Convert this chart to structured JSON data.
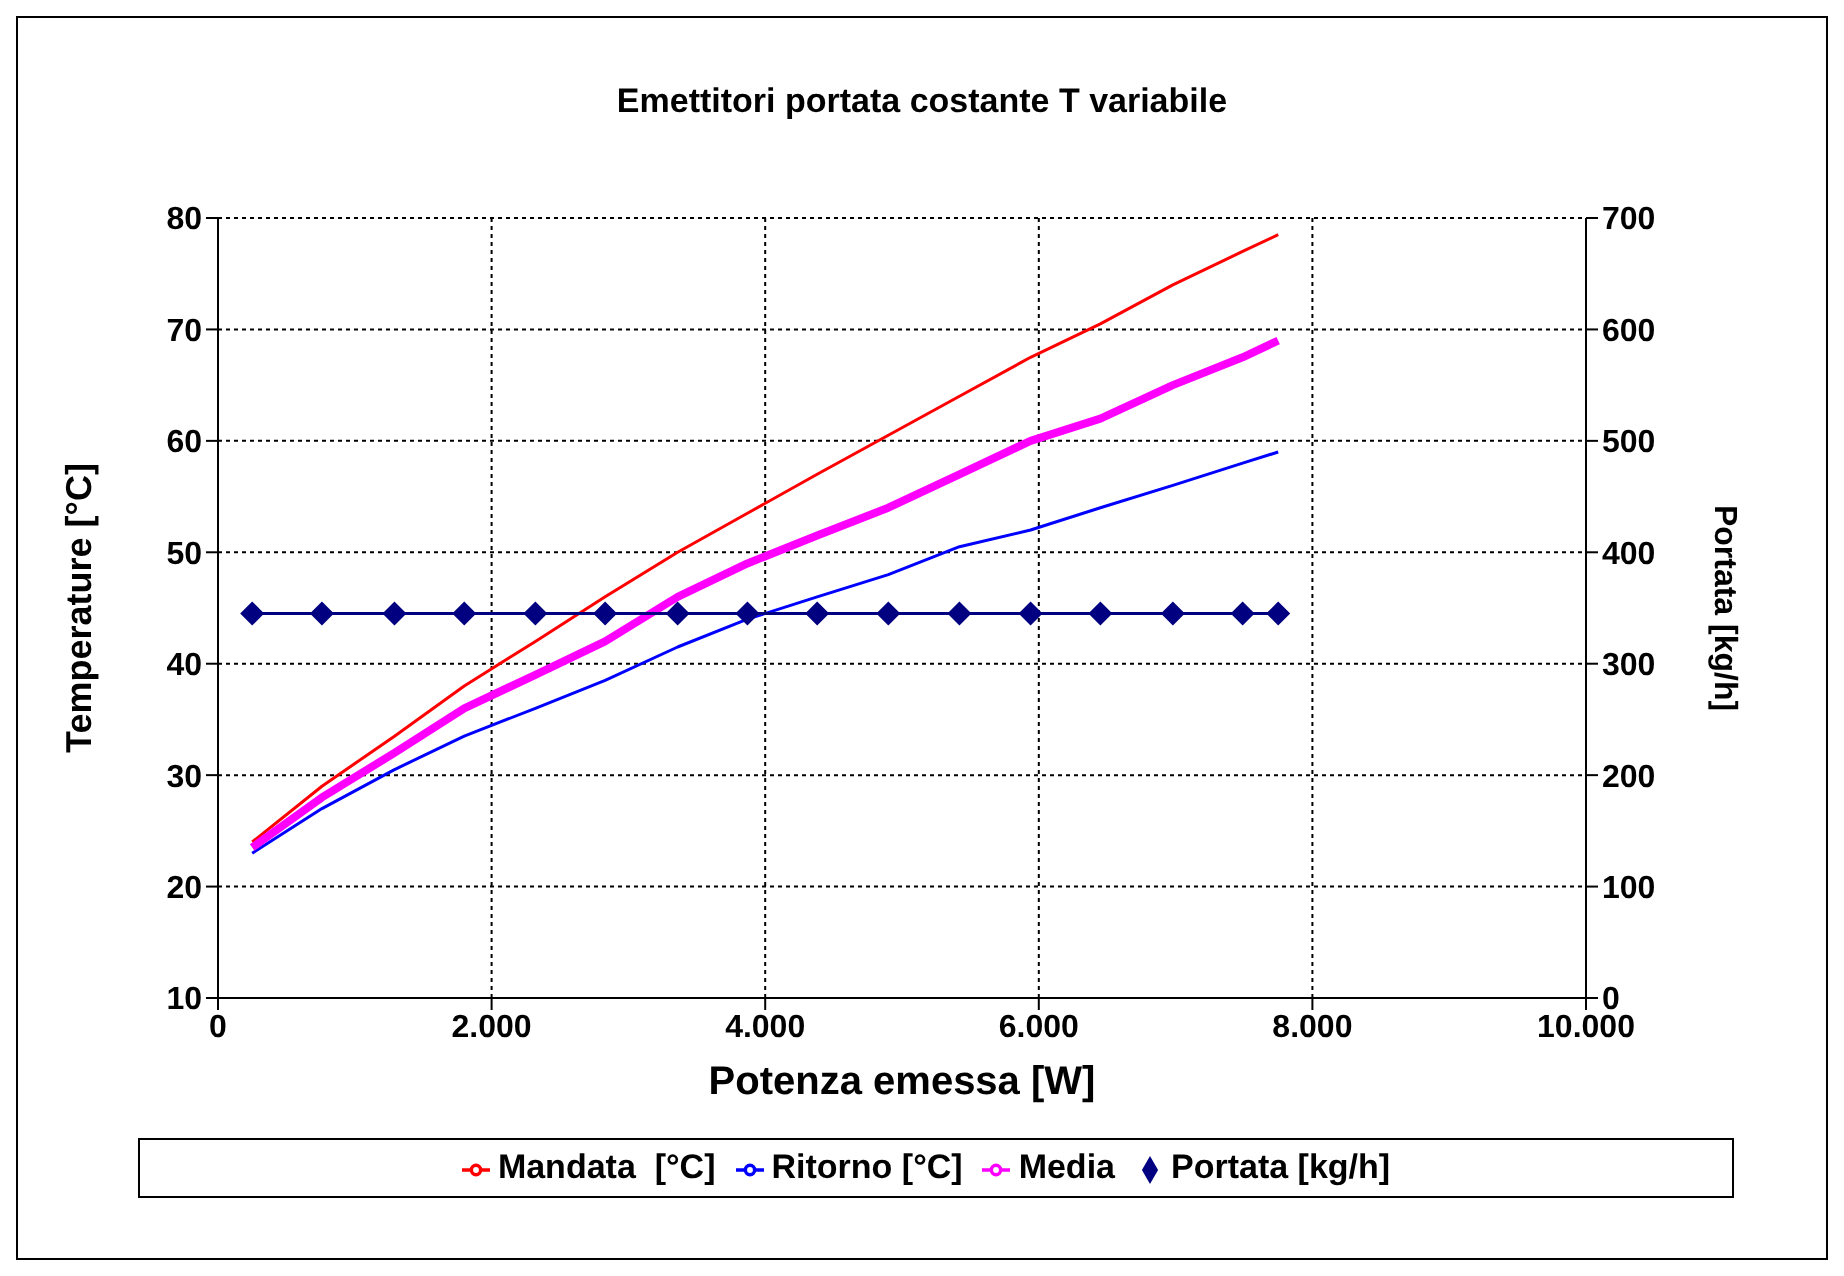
{
  "chart_data": {
    "type": "line",
    "title": "Emettitori portata costante T variabile",
    "xlabel": "Potenza emessa [W]",
    "ylabel": "Temperature [°C]",
    "y2label": "Portata [kg/h]",
    "x": [
      250,
      760,
      1290,
      1800,
      2320,
      2830,
      3360,
      3870,
      4380,
      4900,
      5420,
      5940,
      6450,
      6980,
      7490,
      7750
    ],
    "series": [
      {
        "name": "Mandata  [°C]",
        "color": "#ff0000",
        "marker": "none",
        "values": [
          24,
          29,
          33.5,
          38,
          42,
          46,
          50,
          53.5,
          57,
          60.5,
          64,
          67.5,
          70.5,
          74,
          77,
          78.5
        ]
      },
      {
        "name": "Ritorno [°C]",
        "color": "#0000ff",
        "marker": "none",
        "values": [
          23,
          27,
          30.5,
          33.5,
          36,
          38.5,
          41.5,
          44,
          46,
          48,
          50.5,
          52,
          54,
          56,
          58,
          59
        ]
      },
      {
        "name": "Media",
        "color": "#ff00ff",
        "marker": "none",
        "values": [
          23.5,
          28,
          32,
          36,
          39,
          42,
          46,
          49,
          51.5,
          54,
          57,
          60,
          62,
          65,
          67.5,
          69
        ]
      },
      {
        "name": "Portata [kg/h]",
        "color": "#000080",
        "marker": "diamond",
        "axis": "y2",
        "values": [
          345,
          345,
          345,
          345,
          345,
          345,
          345,
          345,
          345,
          345,
          345,
          345,
          345,
          345,
          345,
          345
        ]
      }
    ],
    "xlim": [
      0,
      10000
    ],
    "xticks": [
      0,
      {
        "value": 2000,
        "label": "2.000"
      },
      {
        "value": 4000,
        "label": "4.000"
      },
      {
        "value": 6000,
        "label": "6.000"
      },
      {
        "value": 8000,
        "label": "8.000"
      },
      {
        "value": 10000,
        "label": "10.000"
      }
    ],
    "ylim": [
      10,
      80
    ],
    "yticks": [
      10,
      20,
      30,
      40,
      50,
      60,
      70,
      80
    ],
    "y2lim": [
      0,
      700
    ],
    "y2ticks": [
      0,
      100,
      200,
      300,
      400,
      500,
      600,
      700
    ],
    "grid": true,
    "legend": "bottom"
  }
}
